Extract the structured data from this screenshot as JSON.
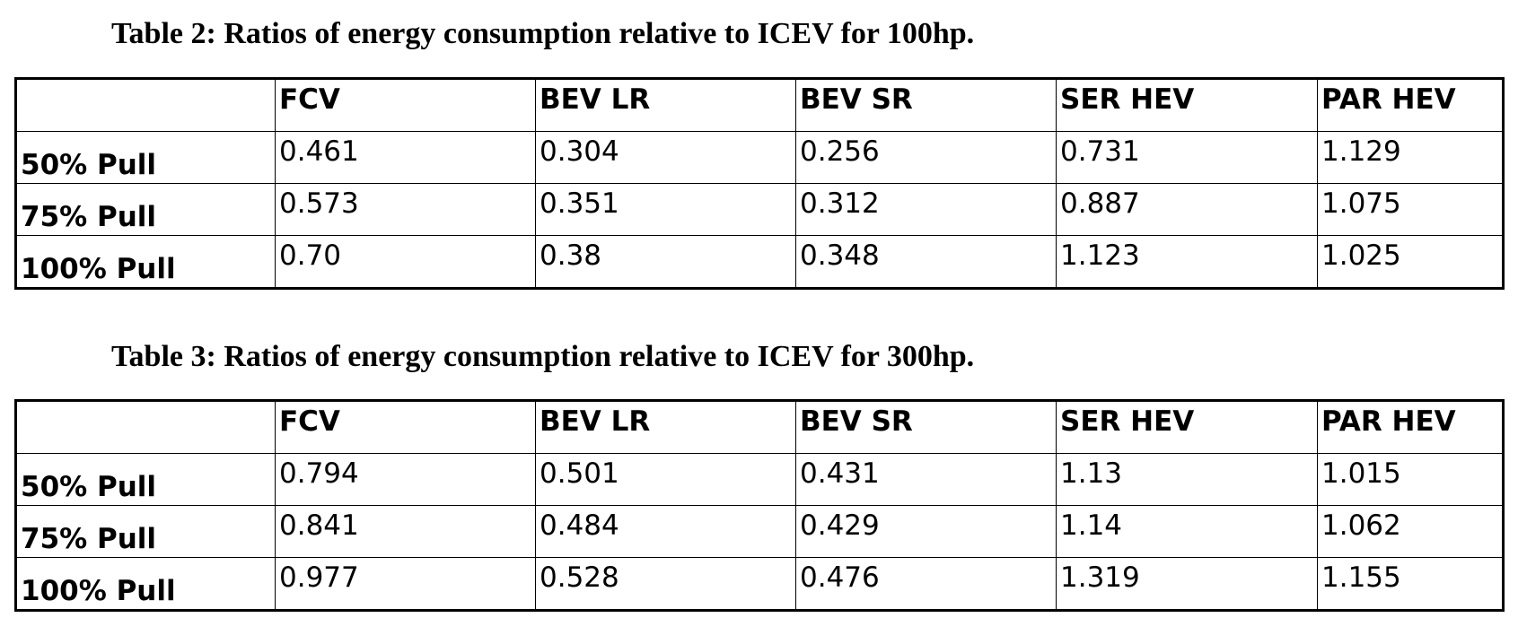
{
  "tables": [
    {
      "caption": "Table 2: Ratios of energy consumption relative to ICEV for 100hp.",
      "headers": [
        "",
        "FCV",
        "BEV LR",
        "BEV SR",
        "SER HEV",
        "PAR HEV"
      ],
      "rows": [
        {
          "label": "50% Pull",
          "values": [
            "0.461",
            "0.304",
            "0.256",
            "0.731",
            "1.129"
          ]
        },
        {
          "label": "75% Pull",
          "values": [
            "0.573",
            "0.351",
            "0.312",
            "0.887",
            "1.075"
          ]
        },
        {
          "label": "100% Pull",
          "values": [
            "0.70",
            "0.38",
            "0.348",
            "1.123",
            "1.025"
          ]
        }
      ]
    },
    {
      "caption": "Table 3: Ratios of energy consumption relative to ICEV for 300hp.",
      "headers": [
        "",
        "FCV",
        "BEV LR",
        "BEV SR",
        "SER HEV",
        "PAR HEV"
      ],
      "rows": [
        {
          "label": "50% Pull",
          "values": [
            "0.794",
            "0.501",
            "0.431",
            "1.13",
            "1.015"
          ]
        },
        {
          "label": "75% Pull",
          "values": [
            "0.841",
            "0.484",
            "0.429",
            "1.14",
            "1.062"
          ]
        },
        {
          "label": "100% Pull",
          "values": [
            "0.977",
            "0.528",
            "0.476",
            "1.319",
            "1.155"
          ]
        }
      ]
    }
  ]
}
